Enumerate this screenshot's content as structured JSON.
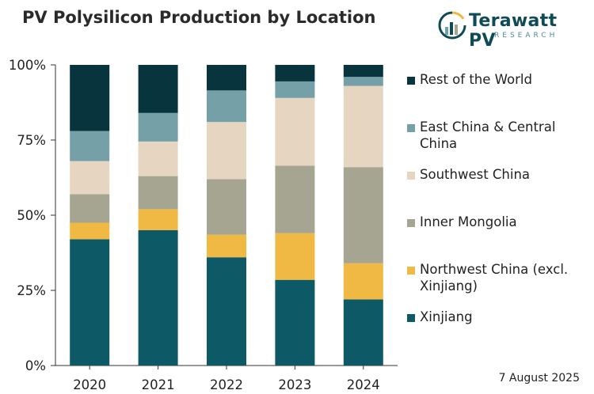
{
  "title": "PV Polysilicon Production by Location",
  "logo": {
    "name": "Terawatt PV",
    "sub": "RESEARCH"
  },
  "date": "7 August 2025",
  "chart_data": {
    "type": "bar",
    "stacked": true,
    "categories": [
      "2020",
      "2021",
      "2022",
      "2023",
      "2024"
    ],
    "y_ticks": [
      "0%",
      "25%",
      "50%",
      "75%",
      "100%"
    ],
    "ylim": [
      0,
      100
    ],
    "grid": false,
    "legend_position": "right",
    "series": [
      {
        "name": "Xinjiang",
        "color": "#0d5a66",
        "values": [
          42,
          45,
          36,
          28.5,
          22
        ]
      },
      {
        "name": "Northwest China (excl. Xinjiang)",
        "color": "#f0b944",
        "values": [
          5.5,
          7,
          7.5,
          15.5,
          12
        ]
      },
      {
        "name": "Inner Mongolia",
        "color": "#a5a592",
        "values": [
          9.5,
          11,
          18.5,
          22.5,
          32
        ]
      },
      {
        "name": "Southwest China",
        "color": "#e6d6c1",
        "values": [
          11,
          11.5,
          19,
          22.5,
          27
        ]
      },
      {
        "name": "East China & Central China",
        "color": "#76a0a8",
        "values": [
          10,
          9.5,
          10.5,
          5.5,
          3
        ]
      },
      {
        "name": "Rest of the World",
        "color": "#08343d",
        "values": [
          22,
          16,
          8.5,
          5.5,
          4
        ]
      }
    ]
  }
}
